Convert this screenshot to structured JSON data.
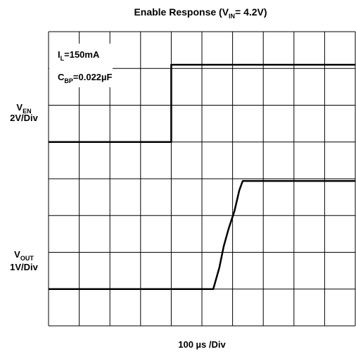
{
  "chart_data": {
    "type": "line",
    "title": {
      "main": "Enable Response (V",
      "sub": "IN",
      "rest": "= 4.2V)"
    },
    "x_label": "100 µs /Div",
    "xlim": [
      0,
      1000
    ],
    "xticks": [
      0,
      100,
      200,
      300,
      400,
      500,
      600,
      700,
      800,
      900,
      1000
    ],
    "ylim": [
      0,
      8
    ],
    "yticks": [
      0,
      1,
      2,
      3,
      4,
      5,
      6,
      7,
      8
    ],
    "grid": true,
    "annotations": [
      {
        "main": "I",
        "sub": "L",
        "rest": "=150mA"
      },
      {
        "main": "C",
        "sub": "BP",
        "rest": "=0.022µF"
      }
    ],
    "series": [
      {
        "label": {
          "main": "V",
          "sub": "EN"
        },
        "scale": "2V/Div",
        "color": "#000000",
        "x": [
          0,
          400,
          400,
          1000
        ],
        "values": [
          5,
          5,
          7.1,
          7.1
        ]
      },
      {
        "label": {
          "main": "V",
          "sub": "OUT"
        },
        "scale": "1V/Div",
        "color": "#000000",
        "x": [
          0,
          537,
          557,
          571,
          587,
          606,
          622,
          633,
          1000
        ],
        "values": [
          1,
          1,
          1.59,
          2.16,
          2.64,
          3.12,
          3.69,
          3.94,
          3.94
        ]
      }
    ]
  }
}
